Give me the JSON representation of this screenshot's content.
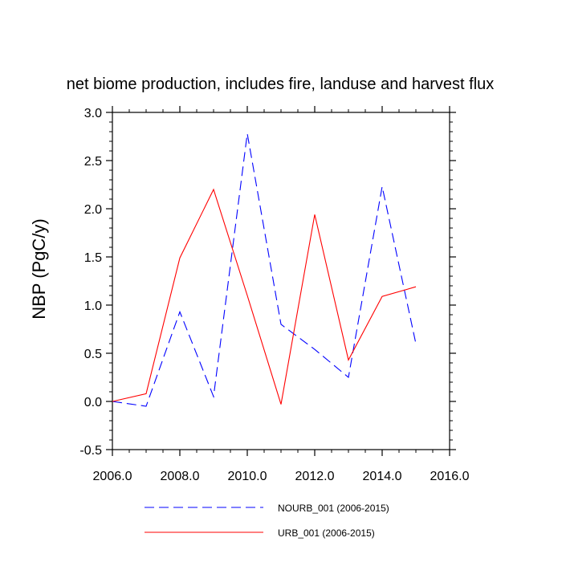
{
  "chart_data": {
    "type": "line",
    "title": "net biome production, includes fire, landuse and harvest flux",
    "ylabel": "NBP  (PgC/y)",
    "xlabel": "",
    "xlim": [
      2006,
      2016
    ],
    "ylim": [
      -0.5,
      3.0
    ],
    "xticks": [
      2006,
      2008,
      2010,
      2012,
      2014,
      2016
    ],
    "xtick_labels": [
      "2006.0",
      "2008.0",
      "2010.0",
      "2012.0",
      "2014.0",
      "2016.0"
    ],
    "yticks": [
      -0.5,
      0,
      0.5,
      1,
      1.5,
      2,
      2.5,
      3
    ],
    "ytick_labels": [
      "-0.5",
      "0.0",
      "0.5",
      "1.0",
      "1.5",
      "2.0",
      "2.5",
      "3.0"
    ],
    "x": [
      2006,
      2007,
      2008,
      2009,
      2010,
      2011,
      2012,
      2013,
      2014,
      2015
    ],
    "series": [
      {
        "name": "NOURB_001 (2006-2015)",
        "color": "#0000ff",
        "dash": "dashed",
        "values": [
          0.0,
          -0.05,
          0.93,
          0.05,
          2.78,
          0.8,
          0.54,
          0.25,
          2.23,
          0.6
        ]
      },
      {
        "name": "URB_001 (2006-2015)",
        "color": "#ff0000",
        "dash": "solid",
        "values": [
          0.0,
          0.08,
          1.49,
          2.2,
          1.1,
          -0.03,
          1.94,
          0.43,
          1.09,
          1.19
        ]
      }
    ],
    "grid": false,
    "legend_position": "bottom"
  }
}
